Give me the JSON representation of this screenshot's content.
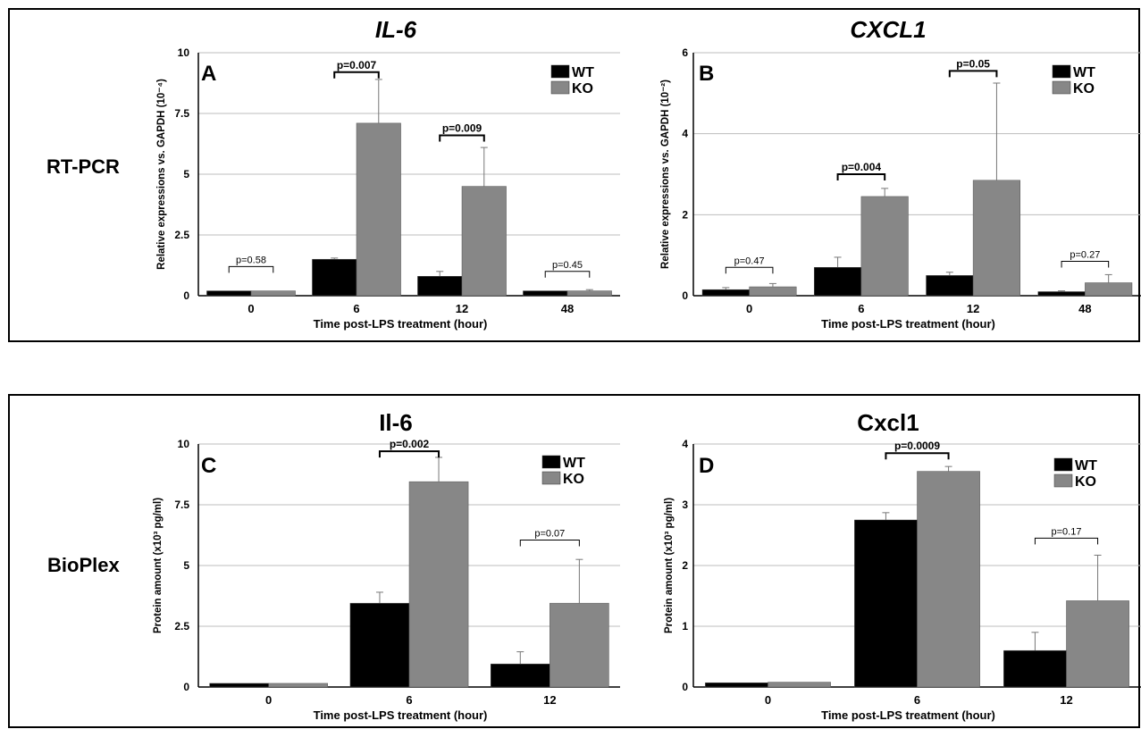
{
  "rows": [
    {
      "label": "RT-PCR"
    },
    {
      "label": "BioPlex"
    }
  ],
  "colors": {
    "WT": "#000000",
    "KO": "#878787",
    "grid": "#bdbdbd",
    "frame": "#000000"
  },
  "chart_data": [
    {
      "type": "bar",
      "panel": "A",
      "title": "IL-6",
      "title_style": "italic",
      "ylabel": "Relative expressions vs. GAPDH (10⁻⁴)",
      "xlabel": "Time post-LPS treatment (hour)",
      "categories": [
        "0",
        "6",
        "12",
        "48"
      ],
      "ylim": [
        0,
        10
      ],
      "yticks": [
        0,
        2.5,
        5,
        7.5,
        10
      ],
      "ytick_labels": [
        "0",
        "2.5",
        "5",
        "7.5",
        "10"
      ],
      "grid": true,
      "legend": "top-right",
      "series": [
        {
          "name": "WT",
          "values": [
            0.2,
            1.5,
            0.8,
            0.2
          ],
          "errors": [
            0,
            0.05,
            0.2,
            0
          ]
        },
        {
          "name": "KO",
          "values": [
            0.2,
            7.1,
            4.5,
            0.2
          ],
          "errors": [
            0,
            1.8,
            1.6,
            0.05
          ]
        }
      ],
      "pvalues": [
        {
          "category": "0",
          "label": "p=0.58",
          "y": 1.2,
          "bold": false
        },
        {
          "category": "6",
          "label": "p=0.007",
          "y": 9.2,
          "bold": true
        },
        {
          "category": "12",
          "label": "p=0.009",
          "y": 6.6,
          "bold": true
        },
        {
          "category": "48",
          "label": "p=0.45",
          "y": 1.0,
          "bold": false
        }
      ]
    },
    {
      "type": "bar",
      "panel": "B",
      "title": "CXCL1",
      "title_style": "italic",
      "ylabel": "Relative expressions vs. GAPDH (10⁻²)",
      "xlabel": "Time post-LPS treatment (hour)",
      "categories": [
        "0",
        "6",
        "12",
        "48"
      ],
      "ylim": [
        0,
        6
      ],
      "yticks": [
        0,
        2,
        4,
        6
      ],
      "ytick_labels": [
        "0",
        "2",
        "4",
        "6"
      ],
      "grid": true,
      "legend": "top-right",
      "series": [
        {
          "name": "WT",
          "values": [
            0.15,
            0.7,
            0.5,
            0.1
          ],
          "errors": [
            0.05,
            0.25,
            0.08,
            0.02
          ]
        },
        {
          "name": "KO",
          "values": [
            0.22,
            2.45,
            2.85,
            0.32
          ],
          "errors": [
            0.08,
            0.2,
            2.4,
            0.2
          ]
        }
      ],
      "pvalues": [
        {
          "category": "0",
          "label": "p=0.47",
          "y": 0.7,
          "bold": false
        },
        {
          "category": "6",
          "label": "p=0.004",
          "y": 3.0,
          "bold": true
        },
        {
          "category": "12",
          "label": "p=0.05",
          "y": 5.55,
          "bold": true
        },
        {
          "category": "48",
          "label": "p=0.27",
          "y": 0.85,
          "bold": false
        }
      ]
    },
    {
      "type": "bar",
      "panel": "C",
      "title": "Il-6",
      "title_style": "normal",
      "ylabel": "Protein amount (x10³ pg/ml)",
      "xlabel": "Time post-LPS treatment (hour)",
      "categories": [
        "0",
        "6",
        "12"
      ],
      "ylim": [
        0,
        10
      ],
      "yticks": [
        0,
        2.5,
        5,
        7.5,
        10
      ],
      "ytick_labels": [
        "0",
        "2.5",
        "5",
        "7.5",
        "10"
      ],
      "grid": true,
      "legend": "top-right",
      "series": [
        {
          "name": "WT",
          "values": [
            0.15,
            3.45,
            0.95
          ],
          "errors": [
            0,
            0.45,
            0.5
          ]
        },
        {
          "name": "KO",
          "values": [
            0.15,
            8.45,
            3.45
          ],
          "errors": [
            0,
            1.0,
            1.8
          ]
        }
      ],
      "pvalues": [
        {
          "category": "6",
          "label": "p=0.002",
          "y": 9.7,
          "bold": true
        },
        {
          "category": "12",
          "label": "p=0.07",
          "y": 6.05,
          "bold": false
        }
      ]
    },
    {
      "type": "bar",
      "panel": "D",
      "title": "Cxcl1",
      "title_style": "normal",
      "ylabel": "Protein amount (x10³ pg/ml)",
      "xlabel": "Time post-LPS treatment (hour)",
      "categories": [
        "0",
        "6",
        "12"
      ],
      "ylim": [
        0,
        4
      ],
      "yticks": [
        0,
        1,
        2,
        3,
        4
      ],
      "ytick_labels": [
        "0",
        "1",
        "2",
        "3",
        "4"
      ],
      "grid": true,
      "legend": "top-right",
      "series": [
        {
          "name": "WT",
          "values": [
            0.07,
            2.75,
            0.6
          ],
          "errors": [
            0,
            0.12,
            0.3
          ]
        },
        {
          "name": "KO",
          "values": [
            0.08,
            3.55,
            1.42
          ],
          "errors": [
            0,
            0.08,
            0.75
          ]
        }
      ],
      "pvalues": [
        {
          "category": "6",
          "label": "p=0.0009",
          "y": 3.85,
          "bold": true
        },
        {
          "category": "12",
          "label": "p=0.17",
          "y": 2.45,
          "bold": false
        }
      ]
    }
  ]
}
